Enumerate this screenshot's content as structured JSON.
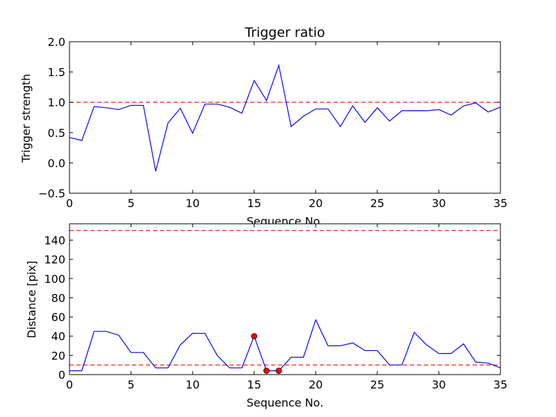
{
  "chart_data": [
    {
      "type": "line",
      "title": "Trigger ratio",
      "xlabel": "Sequence No.",
      "ylabel": "Trigger strength",
      "xlim": [
        0,
        35
      ],
      "ylim": [
        -0.5,
        2.0
      ],
      "xticks": [
        0,
        5,
        10,
        15,
        20,
        25,
        30,
        35
      ],
      "yticks": [
        -0.5,
        0.0,
        0.5,
        1.0,
        1.5,
        2.0
      ],
      "ytick_labels": [
        "−0.5",
        "0.0",
        "0.5",
        "1.0",
        "1.5",
        "2.0"
      ],
      "grid": false,
      "series": [
        {
          "color": "#0000ff",
          "x": [
            0,
            1,
            2,
            3,
            4,
            5,
            6,
            7,
            8,
            9,
            10,
            11,
            12,
            13,
            14,
            15,
            16,
            17,
            18,
            19,
            20,
            21,
            22,
            23,
            24,
            25,
            26,
            27,
            28,
            29,
            30,
            31,
            32,
            33,
            34,
            35
          ],
          "values": [
            0.42,
            0.37,
            0.93,
            0.91,
            0.88,
            0.95,
            0.95,
            -0.14,
            0.66,
            0.9,
            0.49,
            0.97,
            0.97,
            0.92,
            0.82,
            1.36,
            1.03,
            1.61,
            0.6,
            0.77,
            0.89,
            0.89,
            0.6,
            0.94,
            0.67,
            0.91,
            0.69,
            0.86,
            0.86,
            0.86,
            0.88,
            0.79,
            0.94,
            0.99,
            0.84,
            0.92
          ]
        }
      ],
      "reference_lines": [
        {
          "y": 1.0,
          "color": "#ff0000",
          "style": "dashed"
        }
      ]
    },
    {
      "type": "line",
      "title": "",
      "xlabel": "Sequence No.",
      "ylabel": "Distance [pix]",
      "xlim": [
        0,
        35
      ],
      "ylim": [
        0,
        157
      ],
      "xticks": [
        0,
        5,
        10,
        15,
        20,
        25,
        30,
        35
      ],
      "yticks": [
        0,
        20,
        40,
        60,
        80,
        100,
        120,
        140
      ],
      "ytick_labels": [
        "0",
        "20",
        "40",
        "60",
        "80",
        "100",
        "120",
        "140"
      ],
      "grid": false,
      "series": [
        {
          "color": "#0000ff",
          "x": [
            0,
            1,
            2,
            3,
            4,
            5,
            6,
            7,
            8,
            9,
            10,
            11,
            12,
            13,
            14,
            15,
            16,
            17,
            18,
            19,
            20,
            21,
            22,
            23,
            24,
            25,
            26,
            27,
            28,
            29,
            30,
            31,
            32,
            33,
            34,
            35
          ],
          "values": [
            4,
            4,
            45,
            45,
            41,
            23,
            23,
            7,
            7,
            31,
            43,
            43,
            20,
            7,
            7,
            40,
            4,
            4,
            18,
            18,
            57,
            30,
            30,
            33,
            25,
            25,
            10,
            10,
            44,
            31,
            22,
            22,
            32,
            13,
            12,
            7
          ]
        }
      ],
      "markers": {
        "color": "#ff0000",
        "points": [
          {
            "x": 15,
            "y": 40
          },
          {
            "x": 16,
            "y": 4
          },
          {
            "x": 17,
            "y": 4
          }
        ]
      },
      "reference_lines": [
        {
          "y": 150,
          "color": "#ff0000",
          "style": "dashed"
        },
        {
          "y": 10,
          "color": "#ff0000",
          "style": "dashed"
        }
      ]
    }
  ]
}
